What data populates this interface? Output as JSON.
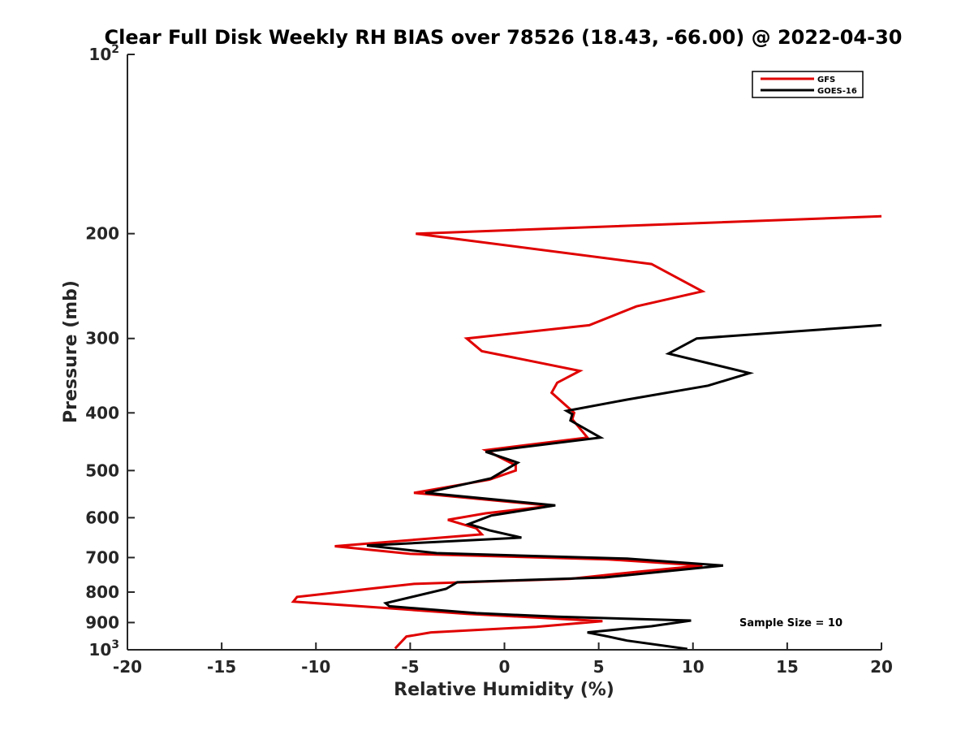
{
  "chart_data": {
    "type": "line",
    "title": "Clear Full Disk Weekly RH BIAS over 78526 (18.43, -66.00) @ 2022-04-30",
    "xlabel": "Relative Humidity (%)",
    "ylabel": "Pressure (mb)",
    "xlim": [
      -20,
      20
    ],
    "ylim": [
      100,
      1000
    ],
    "yscale": "log",
    "y_reversed": true,
    "x_ticks": [
      "-20",
      "-15",
      "-10",
      "-5",
      "0",
      "5",
      "10",
      "15",
      "20"
    ],
    "y_ticks": [
      {
        "value": 100,
        "base": "10",
        "exp": "2"
      },
      {
        "value": 200,
        "label": "200"
      },
      {
        "value": 300,
        "label": "300"
      },
      {
        "value": 400,
        "label": "400"
      },
      {
        "value": 500,
        "label": "500"
      },
      {
        "value": 600,
        "label": "600"
      },
      {
        "value": 700,
        "label": "700"
      },
      {
        "value": 800,
        "label": "800"
      },
      {
        "value": 900,
        "label": "900"
      },
      {
        "value": 1000,
        "base": "10",
        "exp": "3"
      }
    ],
    "legend_position": "top-right",
    "series": [
      {
        "name": "GFS",
        "color": "#e00000",
        "points": [
          [
            20.0,
            187
          ],
          [
            -4.7,
            200
          ],
          [
            7.8,
            225
          ],
          [
            10.5,
            250
          ],
          [
            7.0,
            265
          ],
          [
            4.5,
            285
          ],
          [
            -2.0,
            300
          ],
          [
            -1.2,
            315
          ],
          [
            4.0,
            340
          ],
          [
            2.8,
            356
          ],
          [
            2.5,
            370
          ],
          [
            3.7,
            400
          ],
          [
            3.6,
            410
          ],
          [
            4.4,
            440
          ],
          [
            -1.0,
            462
          ],
          [
            0.6,
            490
          ],
          [
            0.6,
            500
          ],
          [
            -0.8,
            518
          ],
          [
            -4.8,
            545
          ],
          [
            2.5,
            573
          ],
          [
            -1.0,
            590
          ],
          [
            -3.0,
            605
          ],
          [
            -1.5,
            625
          ],
          [
            -1.2,
            640
          ],
          [
            -9.0,
            670
          ],
          [
            -5.0,
            690
          ],
          [
            5.5,
            705
          ],
          [
            10.5,
            722
          ],
          [
            7.0,
            740
          ],
          [
            3.5,
            760
          ],
          [
            -4.8,
            775
          ],
          [
            -7.2,
            790
          ],
          [
            -11.0,
            815
          ],
          [
            -11.2,
            830
          ],
          [
            -6.5,
            850
          ],
          [
            -2.0,
            870
          ],
          [
            5.2,
            895
          ],
          [
            1.7,
            915
          ],
          [
            -3.9,
            935
          ],
          [
            -5.2,
            950
          ],
          [
            -5.8,
            995
          ]
        ]
      },
      {
        "name": "GOES-16",
        "color": "#000000",
        "points": [
          [
            20.0,
            285
          ],
          [
            10.2,
            300
          ],
          [
            8.7,
            318
          ],
          [
            13.0,
            343
          ],
          [
            10.8,
            360
          ],
          [
            6.5,
            380
          ],
          [
            3.3,
            397
          ],
          [
            3.6,
            402
          ],
          [
            3.5,
            412
          ],
          [
            5.1,
            440
          ],
          [
            -1.0,
            465
          ],
          [
            0.7,
            485
          ],
          [
            -0.7,
            515
          ],
          [
            -4.2,
            545
          ],
          [
            2.7,
            572
          ],
          [
            -0.7,
            595
          ],
          [
            -1.9,
            615
          ],
          [
            -0.8,
            630
          ],
          [
            0.9,
            648
          ],
          [
            -7.3,
            668
          ],
          [
            -3.6,
            688
          ],
          [
            6.5,
            703
          ],
          [
            11.6,
            722
          ],
          [
            5.3,
            756
          ],
          [
            -2.5,
            770
          ],
          [
            -3.1,
            790
          ],
          [
            -6.3,
            835
          ],
          [
            -6.1,
            845
          ],
          [
            -1.5,
            868
          ],
          [
            2.8,
            880
          ],
          [
            9.9,
            893
          ],
          [
            7.8,
            913
          ],
          [
            4.4,
            935
          ],
          [
            5.5,
            950
          ],
          [
            6.5,
            965
          ],
          [
            9.7,
            997
          ]
        ]
      }
    ],
    "annotations": [
      "Sample Size = 10"
    ]
  }
}
